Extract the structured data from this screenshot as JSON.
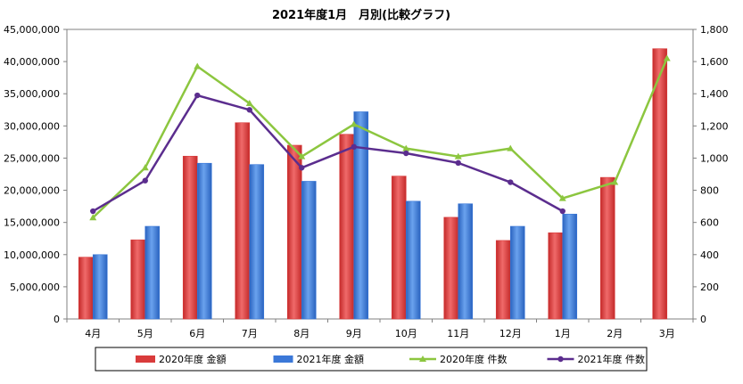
{
  "chart_data": {
    "type": "bar",
    "title": "2021年度1月　月別(比較グラフ)",
    "categories": [
      "4月",
      "5月",
      "6月",
      "7月",
      "8月",
      "9月",
      "10月",
      "11月",
      "12月",
      "1月",
      "2月",
      "3月"
    ],
    "y_left": {
      "ylim": [
        0,
        45000000
      ],
      "ticks": [
        0,
        5000000,
        10000000,
        15000000,
        20000000,
        25000000,
        30000000,
        35000000,
        40000000,
        45000000
      ],
      "tick_labels": [
        "0",
        "5,000,000",
        "10,000,000",
        "15,000,000",
        "20,000,000",
        "25,000,000",
        "30,000,000",
        "35,000,000",
        "40,000,000",
        "45,000,000"
      ]
    },
    "y_right": {
      "ylim": [
        0,
        1800
      ],
      "ticks": [
        0,
        200,
        400,
        600,
        800,
        1000,
        1200,
        1400,
        1600,
        1800
      ],
      "tick_labels": [
        "0",
        "200",
        "400",
        "600",
        "800",
        "1,000",
        "1,200",
        "1,400",
        "1,600",
        "1,800"
      ]
    },
    "series": [
      {
        "name": "2020年度 金額",
        "kind": "bar",
        "axis": "left",
        "color": "#d93b3b",
        "values": [
          9600000,
          12300000,
          25300000,
          30500000,
          27000000,
          28700000,
          22200000,
          15800000,
          12200000,
          13400000,
          22000000,
          42000000
        ]
      },
      {
        "name": "2021年度 金額",
        "kind": "bar",
        "axis": "left",
        "color": "#3b78d8",
        "values": [
          10000000,
          14400000,
          24200000,
          24000000,
          21400000,
          32200000,
          18300000,
          17900000,
          14400000,
          16300000,
          null,
          null
        ]
      },
      {
        "name": "2020年度 件数",
        "kind": "line",
        "axis": "right",
        "color": "#8cc63f",
        "marker": "triangle",
        "values": [
          630,
          940,
          1570,
          1340,
          1010,
          1210,
          1060,
          1010,
          1060,
          750,
          850,
          1620
        ]
      },
      {
        "name": "2021年度 件数",
        "kind": "line",
        "axis": "right",
        "color": "#5b2d8e",
        "marker": "circle",
        "values": [
          670,
          860,
          1390,
          1300,
          940,
          1070,
          1030,
          970,
          850,
          670,
          null,
          null
        ]
      }
    ],
    "grid": false,
    "legend_position": "bottom"
  }
}
